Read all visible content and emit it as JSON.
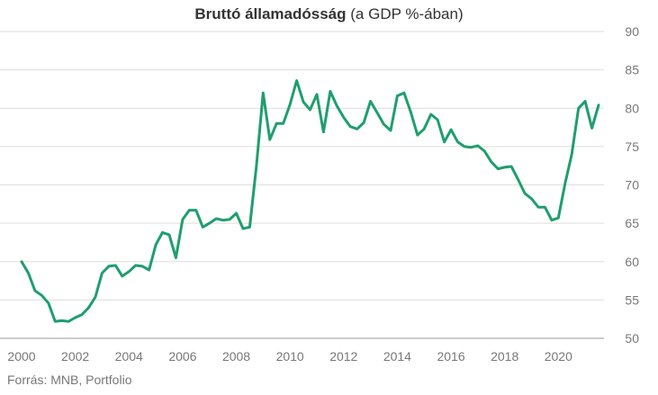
{
  "title": {
    "bold": "Bruttó államadósság",
    "rest": " (a GDP %-ában)"
  },
  "source": "Forrás: MNB, Portfolio",
  "colors": {
    "line": "#1f9e6e",
    "grid": "#dddddd",
    "text": "#777777"
  },
  "chart_data": {
    "type": "line",
    "title": "Bruttó államadósság (a GDP %-ában)",
    "xlabel": "",
    "ylabel": "",
    "xlim": [
      2000,
      2021.7
    ],
    "ylim": [
      50,
      90
    ],
    "x_ticks": [
      2000,
      2002,
      2004,
      2006,
      2008,
      2010,
      2012,
      2014,
      2016,
      2018,
      2020
    ],
    "y_ticks": [
      50,
      55,
      60,
      65,
      70,
      75,
      80,
      85,
      90
    ],
    "grid": true,
    "y_axis_side": "right",
    "legend": "none",
    "series": [
      {
        "x": [
          2000.0,
          2000.25,
          2000.5,
          2000.75,
          2001.0,
          2001.25,
          2001.5,
          2001.75,
          2002.0,
          2002.25,
          2002.5,
          2002.75,
          2003.0,
          2003.25,
          2003.5,
          2003.75,
          2004.0,
          2004.25,
          2004.5,
          2004.75,
          2005.0,
          2005.25,
          2005.5,
          2005.75,
          2006.0,
          2006.25,
          2006.5,
          2006.75,
          2007.0,
          2007.25,
          2007.5,
          2007.75,
          2008.0,
          2008.25,
          2008.5,
          2008.75,
          2009.0,
          2009.25,
          2009.5,
          2009.75,
          2010.0,
          2010.25,
          2010.5,
          2010.75,
          2011.0,
          2011.25,
          2011.5,
          2011.75,
          2012.0,
          2012.25,
          2012.5,
          2012.75,
          2013.0,
          2013.25,
          2013.5,
          2013.75,
          2014.0,
          2014.25,
          2014.5,
          2014.75,
          2015.0,
          2015.25,
          2015.5,
          2015.75,
          2016.0,
          2016.25,
          2016.5,
          2016.75,
          2017.0,
          2017.25,
          2017.5,
          2017.75,
          2018.0,
          2018.25,
          2018.5,
          2018.75,
          2019.0,
          2019.25,
          2019.5,
          2019.75,
          2020.0,
          2020.25,
          2020.5,
          2020.75,
          2021.0,
          2021.25,
          2021.5
        ],
        "values": [
          60.0,
          58.5,
          56.2,
          55.6,
          54.6,
          52.2,
          52.3,
          52.2,
          52.7,
          53.1,
          54.0,
          55.4,
          58.5,
          59.4,
          59.5,
          58.1,
          58.7,
          59.5,
          59.4,
          58.9,
          62.2,
          63.8,
          63.5,
          60.5,
          65.5,
          66.7,
          66.7,
          64.5,
          65.0,
          65.6,
          65.4,
          65.5,
          66.3,
          64.3,
          64.5,
          72.5,
          82.0,
          75.9,
          78.0,
          78.0,
          80.5,
          83.6,
          80.8,
          79.8,
          81.8,
          76.9,
          82.2,
          80.3,
          78.8,
          77.6,
          77.3,
          78.1,
          80.9,
          79.4,
          77.9,
          77.1,
          81.6,
          82.0,
          79.5,
          76.5,
          77.3,
          79.2,
          78.5,
          75.6,
          77.2,
          75.6,
          75.0,
          74.9,
          75.1,
          74.4,
          73.0,
          72.1,
          72.3,
          72.4,
          70.7,
          68.9,
          68.2,
          67.1,
          67.1,
          65.4,
          65.7,
          70.2,
          74.0,
          80.0,
          80.9,
          77.4,
          80.4
        ]
      }
    ]
  }
}
